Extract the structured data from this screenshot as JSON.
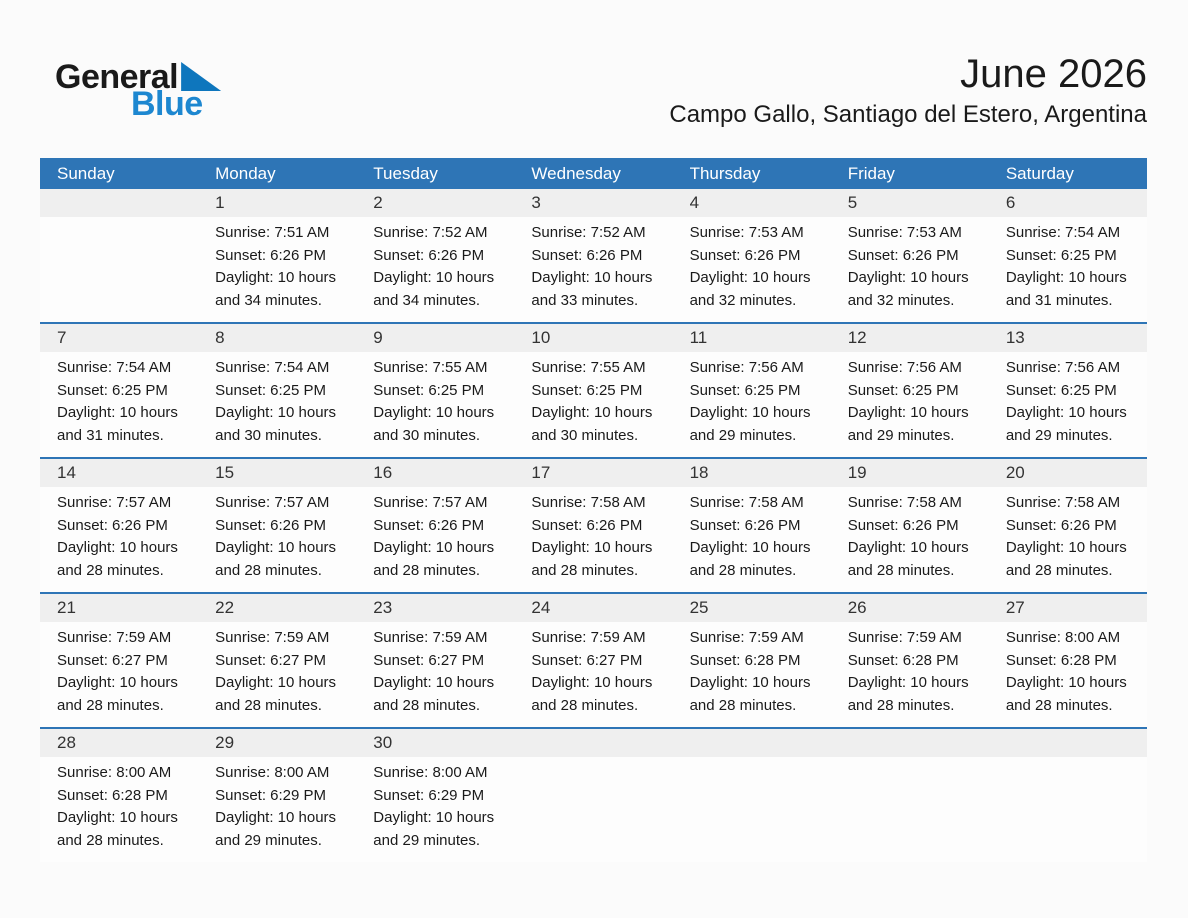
{
  "logo": {
    "general": "General",
    "blue": "Blue"
  },
  "header": {
    "month_year": "June 2026",
    "location": "Campo Gallo, Santiago del Estero, Argentina"
  },
  "weekday_headers": [
    "Sunday",
    "Monday",
    "Tuesday",
    "Wednesday",
    "Thursday",
    "Friday",
    "Saturday"
  ],
  "colors": {
    "header_blue": "#2e75b6",
    "strip_gray": "#efefef",
    "logo_blue": "#1d87d0",
    "logo_triangle_blue": "#0e76bd",
    "text_dark": "#1a1a1a"
  },
  "weeks": [
    [
      null,
      {
        "day": "1",
        "sunrise": "Sunrise: 7:51 AM",
        "sunset": "Sunset: 6:26 PM",
        "daylight": "Daylight: 10 hours and 34 minutes."
      },
      {
        "day": "2",
        "sunrise": "Sunrise: 7:52 AM",
        "sunset": "Sunset: 6:26 PM",
        "daylight": "Daylight: 10 hours and 34 minutes."
      },
      {
        "day": "3",
        "sunrise": "Sunrise: 7:52 AM",
        "sunset": "Sunset: 6:26 PM",
        "daylight": "Daylight: 10 hours and 33 minutes."
      },
      {
        "day": "4",
        "sunrise": "Sunrise: 7:53 AM",
        "sunset": "Sunset: 6:26 PM",
        "daylight": "Daylight: 10 hours and 32 minutes."
      },
      {
        "day": "5",
        "sunrise": "Sunrise: 7:53 AM",
        "sunset": "Sunset: 6:26 PM",
        "daylight": "Daylight: 10 hours and 32 minutes."
      },
      {
        "day": "6",
        "sunrise": "Sunrise: 7:54 AM",
        "sunset": "Sunset: 6:25 PM",
        "daylight": "Daylight: 10 hours and 31 minutes."
      }
    ],
    [
      {
        "day": "7",
        "sunrise": "Sunrise: 7:54 AM",
        "sunset": "Sunset: 6:25 PM",
        "daylight": "Daylight: 10 hours and 31 minutes."
      },
      {
        "day": "8",
        "sunrise": "Sunrise: 7:54 AM",
        "sunset": "Sunset: 6:25 PM",
        "daylight": "Daylight: 10 hours and 30 minutes."
      },
      {
        "day": "9",
        "sunrise": "Sunrise: 7:55 AM",
        "sunset": "Sunset: 6:25 PM",
        "daylight": "Daylight: 10 hours and 30 minutes."
      },
      {
        "day": "10",
        "sunrise": "Sunrise: 7:55 AM",
        "sunset": "Sunset: 6:25 PM",
        "daylight": "Daylight: 10 hours and 30 minutes."
      },
      {
        "day": "11",
        "sunrise": "Sunrise: 7:56 AM",
        "sunset": "Sunset: 6:25 PM",
        "daylight": "Daylight: 10 hours and 29 minutes."
      },
      {
        "day": "12",
        "sunrise": "Sunrise: 7:56 AM",
        "sunset": "Sunset: 6:25 PM",
        "daylight": "Daylight: 10 hours and 29 minutes."
      },
      {
        "day": "13",
        "sunrise": "Sunrise: 7:56 AM",
        "sunset": "Sunset: 6:25 PM",
        "daylight": "Daylight: 10 hours and 29 minutes."
      }
    ],
    [
      {
        "day": "14",
        "sunrise": "Sunrise: 7:57 AM",
        "sunset": "Sunset: 6:26 PM",
        "daylight": "Daylight: 10 hours and 28 minutes."
      },
      {
        "day": "15",
        "sunrise": "Sunrise: 7:57 AM",
        "sunset": "Sunset: 6:26 PM",
        "daylight": "Daylight: 10 hours and 28 minutes."
      },
      {
        "day": "16",
        "sunrise": "Sunrise: 7:57 AM",
        "sunset": "Sunset: 6:26 PM",
        "daylight": "Daylight: 10 hours and 28 minutes."
      },
      {
        "day": "17",
        "sunrise": "Sunrise: 7:58 AM",
        "sunset": "Sunset: 6:26 PM",
        "daylight": "Daylight: 10 hours and 28 minutes."
      },
      {
        "day": "18",
        "sunrise": "Sunrise: 7:58 AM",
        "sunset": "Sunset: 6:26 PM",
        "daylight": "Daylight: 10 hours and 28 minutes."
      },
      {
        "day": "19",
        "sunrise": "Sunrise: 7:58 AM",
        "sunset": "Sunset: 6:26 PM",
        "daylight": "Daylight: 10 hours and 28 minutes."
      },
      {
        "day": "20",
        "sunrise": "Sunrise: 7:58 AM",
        "sunset": "Sunset: 6:26 PM",
        "daylight": "Daylight: 10 hours and 28 minutes."
      }
    ],
    [
      {
        "day": "21",
        "sunrise": "Sunrise: 7:59 AM",
        "sunset": "Sunset: 6:27 PM",
        "daylight": "Daylight: 10 hours and 28 minutes."
      },
      {
        "day": "22",
        "sunrise": "Sunrise: 7:59 AM",
        "sunset": "Sunset: 6:27 PM",
        "daylight": "Daylight: 10 hours and 28 minutes."
      },
      {
        "day": "23",
        "sunrise": "Sunrise: 7:59 AM",
        "sunset": "Sunset: 6:27 PM",
        "daylight": "Daylight: 10 hours and 28 minutes."
      },
      {
        "day": "24",
        "sunrise": "Sunrise: 7:59 AM",
        "sunset": "Sunset: 6:27 PM",
        "daylight": "Daylight: 10 hours and 28 minutes."
      },
      {
        "day": "25",
        "sunrise": "Sunrise: 7:59 AM",
        "sunset": "Sunset: 6:28 PM",
        "daylight": "Daylight: 10 hours and 28 minutes."
      },
      {
        "day": "26",
        "sunrise": "Sunrise: 7:59 AM",
        "sunset": "Sunset: 6:28 PM",
        "daylight": "Daylight: 10 hours and 28 minutes."
      },
      {
        "day": "27",
        "sunrise": "Sunrise: 8:00 AM",
        "sunset": "Sunset: 6:28 PM",
        "daylight": "Daylight: 10 hours and 28 minutes."
      }
    ],
    [
      {
        "day": "28",
        "sunrise": "Sunrise: 8:00 AM",
        "sunset": "Sunset: 6:28 PM",
        "daylight": "Daylight: 10 hours and 28 minutes."
      },
      {
        "day": "29",
        "sunrise": "Sunrise: 8:00 AM",
        "sunset": "Sunset: 6:29 PM",
        "daylight": "Daylight: 10 hours and 29 minutes."
      },
      {
        "day": "30",
        "sunrise": "Sunrise: 8:00 AM",
        "sunset": "Sunset: 6:29 PM",
        "daylight": "Daylight: 10 hours and 29 minutes."
      },
      null,
      null,
      null,
      null
    ]
  ]
}
